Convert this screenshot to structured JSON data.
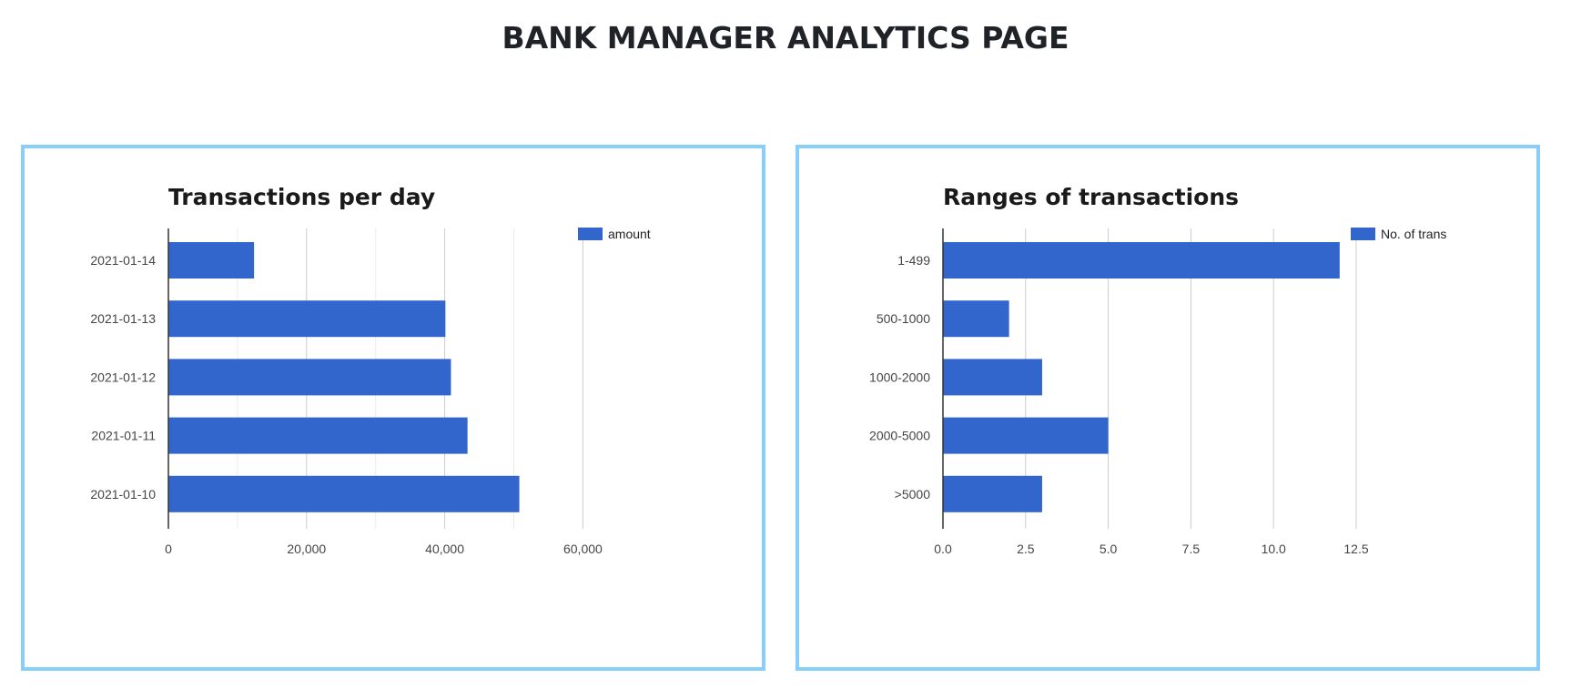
{
  "page": {
    "title": "BANK MANAGER ANALYTICS PAGE"
  },
  "colors": {
    "bar": "#3366cc",
    "card_border": "#87cefa",
    "grid_major": "#cccccc",
    "grid_minor": "#ebebeb",
    "axis": "#333333"
  },
  "chart_data": [
    {
      "type": "bar",
      "orientation": "horizontal",
      "title": "Transactions per day",
      "categories": [
        "2021-01-14",
        "2021-01-13",
        "2021-01-12",
        "2021-01-11",
        "2021-01-10"
      ],
      "series": [
        {
          "name": "amount",
          "values": [
            12400,
            40100,
            40900,
            43300,
            50800
          ]
        }
      ],
      "xlim": [
        0,
        65000
      ],
      "xticks": [
        0,
        20000,
        40000,
        60000
      ],
      "xtick_labels": [
        "0",
        "20,000",
        "40,000",
        "60,000"
      ],
      "minor_gridlines": true,
      "legend_position": "top-right",
      "grid": true
    },
    {
      "type": "bar",
      "orientation": "horizontal",
      "title": "Ranges of transactions",
      "categories": [
        "1-499",
        "500-1000",
        "1000-2000",
        "2000-5000",
        ">5000"
      ],
      "series": [
        {
          "name": "No. of trans",
          "values": [
            12,
            2,
            3,
            5,
            3
          ]
        }
      ],
      "xlim": [
        0,
        13
      ],
      "xticks": [
        0,
        2.5,
        5,
        7.5,
        10,
        12.5
      ],
      "xtick_labels": [
        "0.0",
        "2.5",
        "5.0",
        "7.5",
        "10.0",
        "12.5"
      ],
      "minor_gridlines": false,
      "legend_position": "top-right",
      "grid": true
    }
  ]
}
